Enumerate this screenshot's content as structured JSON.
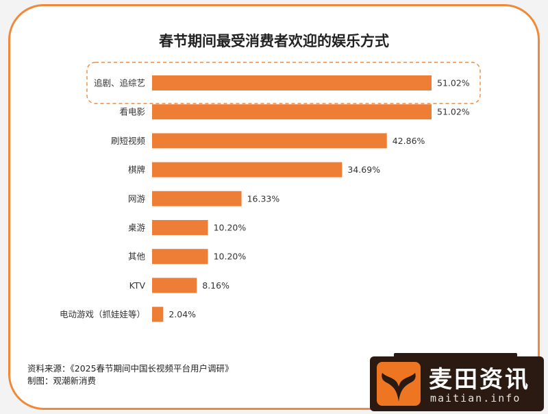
{
  "chart_data": {
    "type": "bar",
    "orientation": "horizontal",
    "title": "春节期间最受消费者欢迎的娱乐方式",
    "categories": [
      "追剧、追综艺",
      "看电影",
      "刷短视频",
      "棋牌",
      "网游",
      "桌游",
      "其他",
      "KTV",
      "电动游戏（抓娃娃等）"
    ],
    "values": [
      51.02,
      51.02,
      42.86,
      34.69,
      16.33,
      10.2,
      10.2,
      8.16,
      2.04
    ],
    "value_labels": [
      "51.02%",
      "51.02%",
      "42.86%",
      "34.69%",
      "16.33%",
      "10.20%",
      "10.20%",
      "8.16%",
      "2.04%"
    ],
    "highlighted_category": "追剧、追综艺",
    "xlim": [
      0,
      51.02
    ],
    "grid": false,
    "legend": "none",
    "colors": {
      "bar": "#ee7d35",
      "highlight_border": "#ee8a3c",
      "card_border": "#f08a3a"
    }
  },
  "footer": {
    "source": "资料来源：《2025春节期间中国长视频平台用户调研》",
    "maker": "制图：观潮新消费"
  },
  "watermark": {
    "site_name": "麦田资讯",
    "site_url": "maitian.info",
    "logo_icon": "whale-tail-icon"
  }
}
